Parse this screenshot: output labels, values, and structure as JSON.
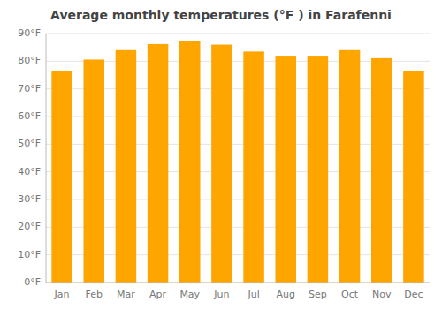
{
  "chart_data": {
    "type": "bar",
    "title": "Average monthly temperatures (°F ) in Farafenni",
    "categories": [
      "Jan",
      "Feb",
      "Mar",
      "Apr",
      "May",
      "Jun",
      "Jul",
      "Aug",
      "Sep",
      "Oct",
      "Nov",
      "Dec"
    ],
    "values": [
      76.6,
      80.6,
      84.0,
      86.2,
      87.3,
      86.0,
      83.5,
      82.0,
      82.0,
      84.0,
      81.1,
      76.6
    ],
    "color": "#FFA500",
    "ylim": [
      0,
      90
    ],
    "yticks": [
      {
        "value": 0,
        "label": "0°F"
      },
      {
        "value": 10,
        "label": "10°F"
      },
      {
        "value": 20,
        "label": "20°F"
      },
      {
        "value": 30,
        "label": "30°F"
      },
      {
        "value": 40,
        "label": "40°F"
      },
      {
        "value": 50,
        "label": "50°F"
      },
      {
        "value": 60,
        "label": "60°F"
      },
      {
        "value": 70,
        "label": "70°F"
      },
      {
        "value": 80,
        "label": "80°F"
      },
      {
        "value": 90,
        "label": "90°F"
      }
    ],
    "grid": true
  }
}
